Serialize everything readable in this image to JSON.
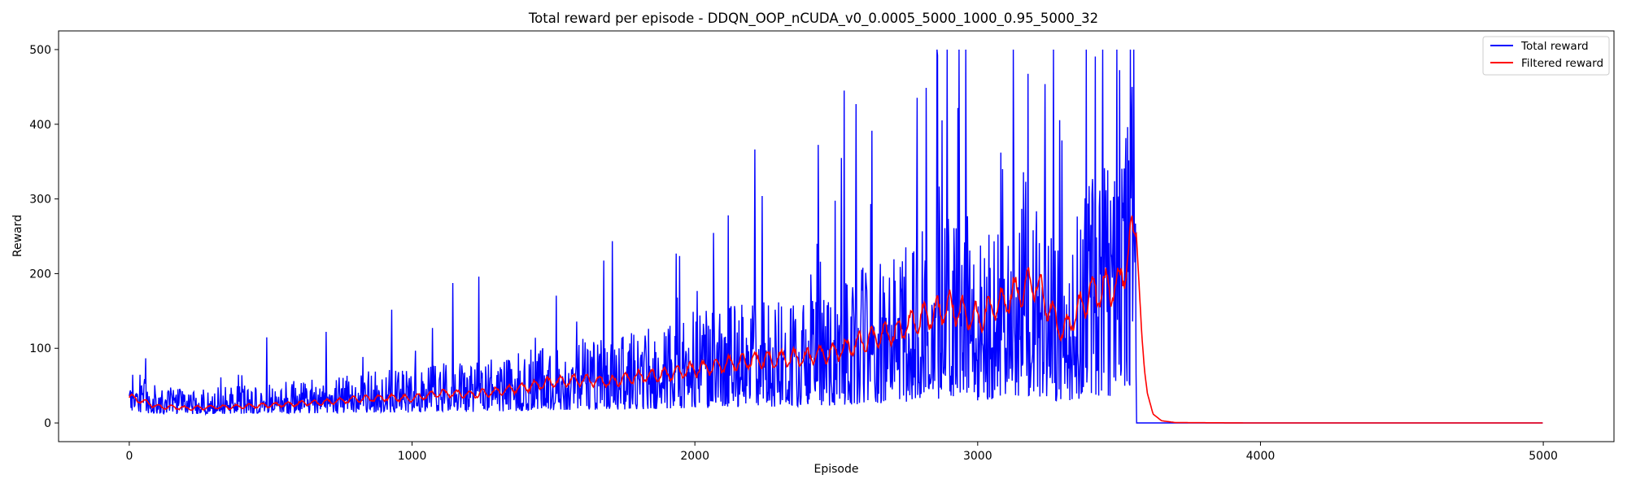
{
  "chart_data": {
    "type": "line",
    "title": "Total reward per episode - DDQN_OOP_nCUDA_v0_0.0005_5000_1000_0.95_5000_32",
    "xlabel": "Episode",
    "ylabel": "Reward",
    "xlim": [
      -250,
      5250
    ],
    "ylim": [
      -25,
      525
    ],
    "xticks": [
      0,
      1000,
      2000,
      3000,
      4000,
      5000
    ],
    "yticks": [
      0,
      100,
      200,
      300,
      400,
      500
    ],
    "grid": false,
    "legend_position": "top-right",
    "episodes": 5000,
    "series": [
      {
        "name": "Total reward",
        "color": "#0000ff",
        "x": [
          0,
          100,
          200,
          300,
          400,
          500,
          600,
          700,
          800,
          900,
          1000,
          1100,
          1200,
          1300,
          1400,
          1500,
          1600,
          1700,
          1800,
          1900,
          2000,
          2100,
          2200,
          2300,
          2400,
          2500,
          2600,
          2700,
          2800,
          2900,
          3000,
          3100,
          3200,
          3300,
          3400,
          3500,
          3560,
          3600,
          5000
        ],
        "values": [
          35,
          22,
          20,
          21,
          22,
          24,
          26,
          28,
          32,
          34,
          33,
          40,
          38,
          42,
          48,
          55,
          58,
          55,
          62,
          66,
          72,
          78,
          84,
          86,
          88,
          95,
          110,
          120,
          140,
          155,
          140,
          165,
          190,
          120,
          175,
          185,
          260,
          0,
          0
        ]
      },
      {
        "name": "Filtered reward",
        "color": "#ff0000",
        "x": [
          0,
          100,
          200,
          300,
          400,
          500,
          600,
          700,
          800,
          900,
          1000,
          1100,
          1200,
          1300,
          1400,
          1500,
          1600,
          1700,
          1800,
          1900,
          2000,
          2100,
          2200,
          2300,
          2400,
          2500,
          2600,
          2700,
          2800,
          2900,
          3000,
          3100,
          3200,
          3300,
          3400,
          3500,
          3560,
          3570,
          3580,
          3590,
          3600,
          3620,
          3650,
          3700,
          4000,
          5000
        ],
        "values": [
          35,
          22,
          20,
          21,
          22,
          24,
          26,
          28,
          32,
          34,
          33,
          40,
          38,
          42,
          48,
          55,
          58,
          55,
          62,
          66,
          72,
          78,
          84,
          86,
          88,
          95,
          110,
          120,
          140,
          155,
          140,
          165,
          190,
          120,
          175,
          185,
          260,
          190,
          120,
          70,
          40,
          12,
          3,
          0.5,
          0,
          0
        ]
      }
    ]
  }
}
